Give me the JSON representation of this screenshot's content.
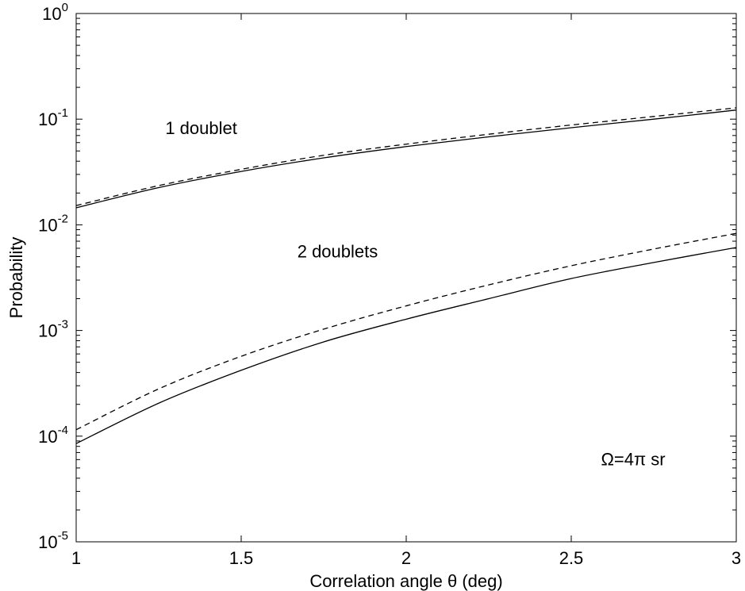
{
  "chart_data": {
    "type": "line",
    "xlabel": "Correlation angle θ (deg)",
    "ylabel": "Probability",
    "xlim": [
      1,
      3
    ],
    "ylim": [
      1e-05,
      1
    ],
    "yscale": "log",
    "grid": false,
    "x_ticks": [
      "1",
      "1.5",
      "2",
      "2.5",
      "3"
    ],
    "y_ticks": [
      {
        "base": "10",
        "exp": "0"
      },
      {
        "base": "10",
        "exp": "-1"
      },
      {
        "base": "10",
        "exp": "-2"
      },
      {
        "base": "10",
        "exp": "-3"
      },
      {
        "base": "10",
        "exp": "-4"
      },
      {
        "base": "10",
        "exp": "-5"
      }
    ],
    "x": [
      1.0,
      1.25,
      1.5,
      1.75,
      2.0,
      2.25,
      2.5,
      2.75,
      3.0
    ],
    "series": [
      {
        "style": "solid",
        "values": [
          0.0145,
          0.0225,
          0.032,
          0.043,
          0.055,
          0.068,
          0.083,
          0.1,
          0.122
        ]
      },
      {
        "style": "dashed",
        "values": [
          0.0152,
          0.0235,
          0.0335,
          0.0455,
          0.058,
          0.072,
          0.088,
          0.106,
          0.128
        ]
      },
      {
        "style": "solid",
        "values": [
          8.5e-05,
          0.000205,
          0.00042,
          0.00078,
          0.00128,
          0.002,
          0.0031,
          0.0044,
          0.0061
        ]
      },
      {
        "style": "dashed",
        "values": [
          0.000115,
          0.00028,
          0.00057,
          0.00103,
          0.00171,
          0.0027,
          0.0041,
          0.0059,
          0.0083
        ]
      }
    ],
    "annotations": [
      {
        "text": "1 doublet",
        "x": 1.27,
        "y": 0.072
      },
      {
        "text": "2 doublets",
        "x": 1.67,
        "y": 0.0049
      },
      {
        "text": "Ω=4π sr",
        "x": 2.59,
        "y": 5.3e-05
      }
    ]
  }
}
